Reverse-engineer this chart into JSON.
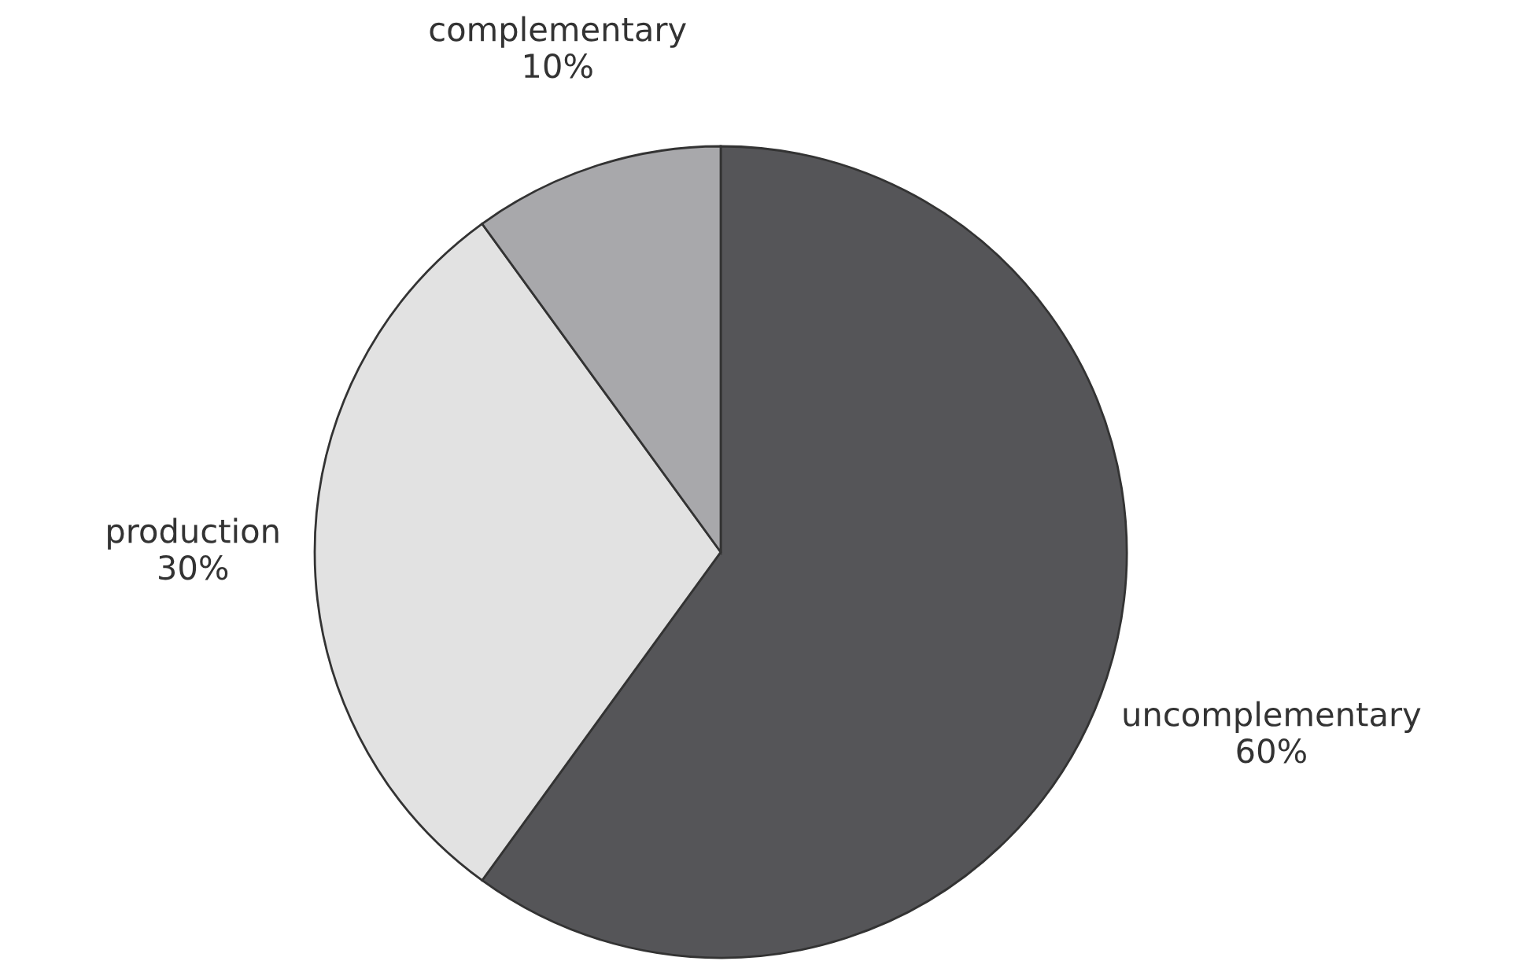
{
  "chart_data": {
    "type": "pie",
    "categories": [
      "uncomplementary",
      "production",
      "complementary"
    ],
    "values": [
      60,
      30,
      10
    ],
    "colors": [
      "#555558",
      "#e2e2e2",
      "#a8a8ab"
    ],
    "value_labels": [
      "60%",
      "30%",
      "10%"
    ]
  }
}
